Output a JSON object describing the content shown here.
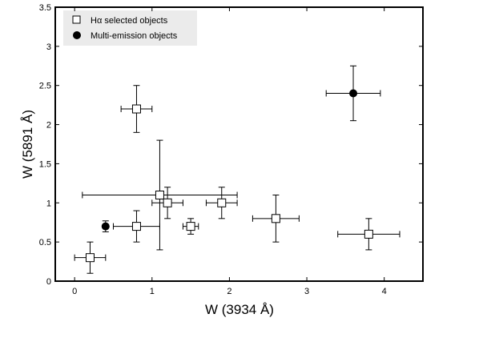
{
  "chart_data": {
    "type": "scatter",
    "title": "",
    "xlabel": "W (3934 Å)",
    "ylabel": "W (5891 Å)",
    "xlim": [
      -0.25,
      4.5
    ],
    "ylim": [
      0,
      3.5
    ],
    "x_ticks": [
      0,
      1,
      2,
      3,
      4
    ],
    "y_ticks": [
      0,
      0.5,
      1,
      1.5,
      2,
      2.5,
      3,
      3.5
    ],
    "x_tick_labels": [
      "0",
      "1",
      "2",
      "3",
      "4"
    ],
    "y_tick_labels": [
      "0",
      "0.5",
      "1",
      "1.5",
      "2",
      "2.5",
      "3",
      "3.5"
    ],
    "grid": false,
    "legend_position": "top-left",
    "series": [
      {
        "name": "Hα selected objects",
        "marker": "open-square",
        "color": "#000000",
        "points": [
          {
            "x": 0.2,
            "y": 0.3,
            "xerr": 0.2,
            "yerr": 0.2
          },
          {
            "x": 0.8,
            "y": 0.7,
            "xerr": 0.3,
            "yerr": 0.2
          },
          {
            "x": 0.8,
            "y": 2.2,
            "xerr": 0.2,
            "yerr": 0.3
          },
          {
            "x": 1.1,
            "y": 1.1,
            "xerr": 1.0,
            "yerr": 0.7
          },
          {
            "x": 1.2,
            "y": 1.0,
            "xerr": 0.2,
            "yerr": 0.2
          },
          {
            "x": 1.5,
            "y": 0.7,
            "xerr": 0.1,
            "yerr": 0.1
          },
          {
            "x": 1.9,
            "y": 1.0,
            "xerr": 0.2,
            "yerr": 0.2
          },
          {
            "x": 2.6,
            "y": 0.8,
            "xerr": 0.3,
            "yerr": 0.3
          },
          {
            "x": 3.8,
            "y": 0.6,
            "xerr": 0.4,
            "yerr": 0.2
          }
        ]
      },
      {
        "name": "Multi-emission objects",
        "marker": "filled-circle",
        "color": "#000000",
        "points": [
          {
            "x": 0.4,
            "y": 0.7,
            "xerr": 0.0,
            "yerr": 0.07
          },
          {
            "x": 3.6,
            "y": 2.4,
            "xerr": 0.35,
            "yerr": 0.35
          }
        ]
      }
    ]
  }
}
